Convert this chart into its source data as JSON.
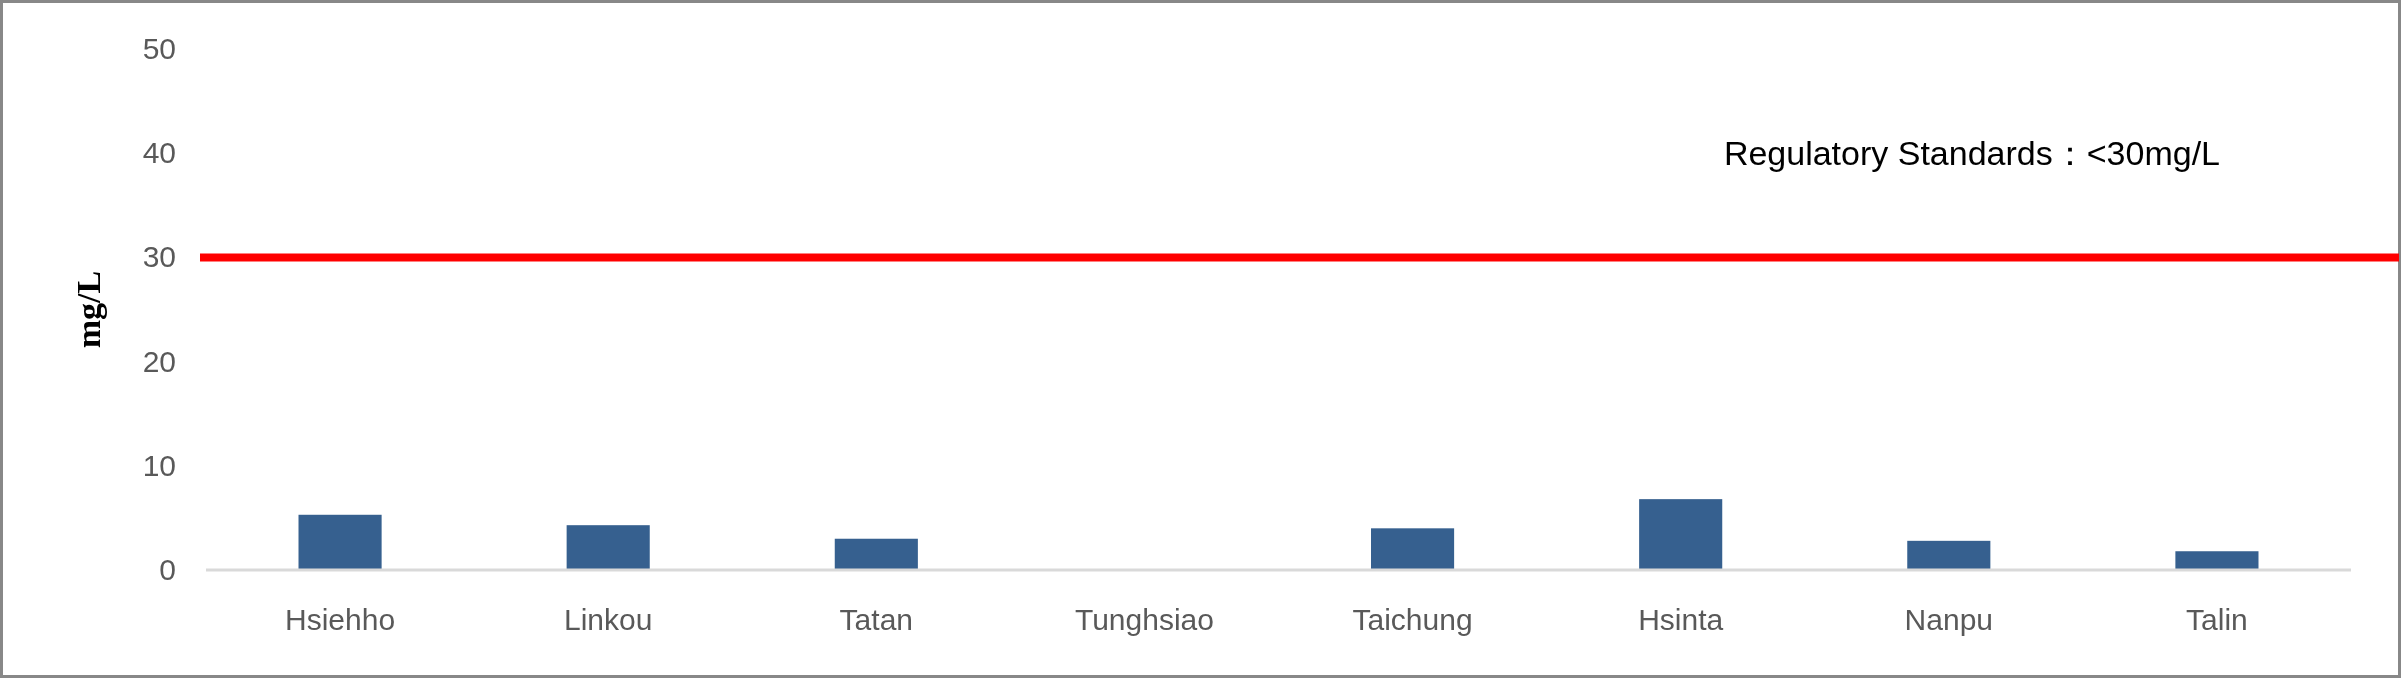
{
  "chart_data": {
    "type": "bar",
    "ylabel": "mg/L",
    "categories": [
      "Hsiehho",
      "Linkou",
      "Tatan",
      "Tunghsiao",
      "Taichung",
      "Hsinta",
      "Nanpu",
      "Talin"
    ],
    "values": [
      5.3,
      4.3,
      3.0,
      0,
      4.0,
      6.8,
      2.8,
      1.8
    ],
    "color": "#36608f",
    "ylim": [
      0,
      50
    ],
    "yticks": [
      0,
      10,
      20,
      30,
      40,
      50
    ],
    "grid": false,
    "ref_lines": [
      {
        "axis": "y",
        "value": 30,
        "color": "#ff0000",
        "line_style": "solid"
      }
    ],
    "annotations": [
      "Regulatory Standards：<30mg/L"
    ]
  }
}
